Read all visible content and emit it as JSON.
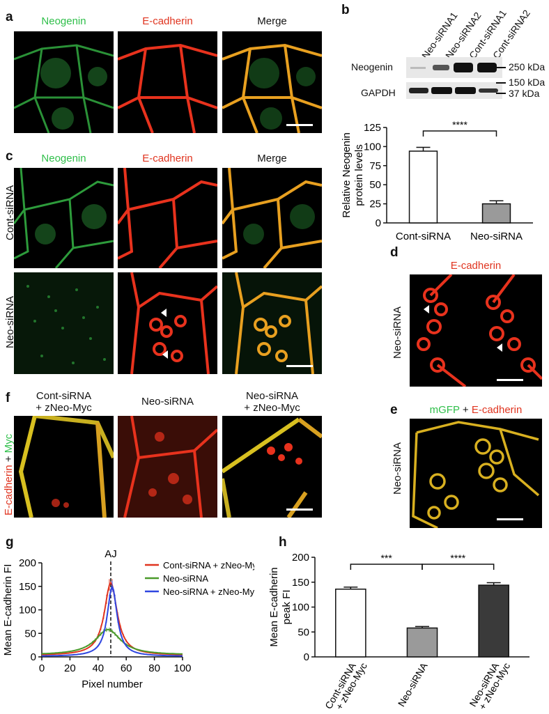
{
  "panels": {
    "a": {
      "letter": "a",
      "headers": [
        "Neogenin",
        "E-cadherin",
        "Merge"
      ]
    },
    "b": {
      "letter": "b",
      "lanes": [
        "Neo-siRNA1",
        "Neo-siRNA2",
        "Cont-siRNA1",
        "Cont-siRNA2"
      ],
      "rows": [
        "Neogenin",
        "GAPDH"
      ],
      "markers": [
        "250 kDa",
        "150 kDa",
        "37 kDa"
      ]
    },
    "c": {
      "letter": "c",
      "headers": [
        "Neogenin",
        "E-cadherin",
        "Merge"
      ],
      "rows": [
        "Cont-siRNA",
        "Neo-siRNA"
      ]
    },
    "d": {
      "letter": "d",
      "header": "E-cadherin",
      "row": "Neo-siRNA"
    },
    "e": {
      "letter": "e",
      "header_a": "mGFP",
      "header_plus": " + ",
      "header_b": "E-cadherin",
      "row": "Neo-siRNA"
    },
    "f": {
      "letter": "f",
      "headers": [
        [
          "Cont-siRNA",
          "+ zNeo-Myc"
        ],
        [
          "Neo-siRNA",
          ""
        ],
        [
          "Neo-siRNA",
          "+ zNeo-Myc"
        ]
      ],
      "side_a": "E-cadherin",
      "side_plus": " + ",
      "side_b": "Myc"
    },
    "g": {
      "letter": "g"
    },
    "h": {
      "letter": "h"
    }
  },
  "colors": {
    "green": "#2fbf4a",
    "red": "#e0341f",
    "blue": "#2f46e0",
    "olive": "#4a9a2a"
  },
  "chart_data": [
    {
      "id": "b-bar",
      "type": "bar",
      "categories": [
        "Cont-siRNA",
        "Neo-siRNA"
      ],
      "values": [
        94,
        25
      ],
      "errors": [
        5,
        4
      ],
      "ylabel": "Relative Neogenin protein levels",
      "ylim": [
        0,
        125
      ],
      "yticks": [
        "0",
        "25",
        "50",
        "75",
        "100",
        "125"
      ],
      "significance": [
        {
          "from": 0,
          "to": 1,
          "label": "****"
        }
      ],
      "fills": [
        "#ffffff",
        "#9a9a9a"
      ]
    },
    {
      "id": "g-line",
      "type": "line",
      "xlabel": "Pixel number",
      "ylabel": "Mean E-cadherin FI",
      "xlim": [
        0,
        100
      ],
      "ylim": [
        0,
        200
      ],
      "xticks": [
        "0",
        "20",
        "40",
        "60",
        "80",
        "100"
      ],
      "yticks": [
        "0",
        "50",
        "100",
        "150",
        "200"
      ],
      "annotation": "AJ",
      "annotation_x": 49,
      "series": [
        {
          "name": "Cont-siRNA + zNeo-Myc",
          "color": "#e0341f",
          "peak": 158,
          "center": 49,
          "width": 5.5,
          "base": 3
        },
        {
          "name": "Neo-siRNA",
          "color": "#4a9a2a",
          "peak": 58,
          "center": 47,
          "width": 11,
          "base": 4
        },
        {
          "name": "Neo-siRNA + zNeo-Myc",
          "color": "#2f46e0",
          "peak": 150,
          "center": 50,
          "width": 4.2,
          "base": 1
        }
      ]
    },
    {
      "id": "h-bar",
      "type": "bar",
      "categories": [
        "Cont-siRNA + zNeo-Myc",
        "Neo-siRNA",
        "Neo-siRNA + zNeo-Myc"
      ],
      "category_lines": [
        [
          "Cont-siRNA",
          "+ zNeo-Myc"
        ],
        [
          "Neo-siRNA"
        ],
        [
          "Neo-siRNA",
          "+ zNeo-Myc"
        ]
      ],
      "values": [
        136,
        58,
        144
      ],
      "errors": [
        4,
        3,
        5
      ],
      "ylabel": "Mean E-cadherin peak FI",
      "ylim": [
        0,
        200
      ],
      "yticks": [
        "0",
        "50",
        "100",
        "150",
        "200"
      ],
      "significance": [
        {
          "from": 0,
          "to": 1,
          "label": "***"
        },
        {
          "from": 1,
          "to": 2,
          "label": "****"
        }
      ],
      "fills": [
        "#ffffff",
        "#9a9a9a",
        "#3a3a3a"
      ]
    }
  ]
}
